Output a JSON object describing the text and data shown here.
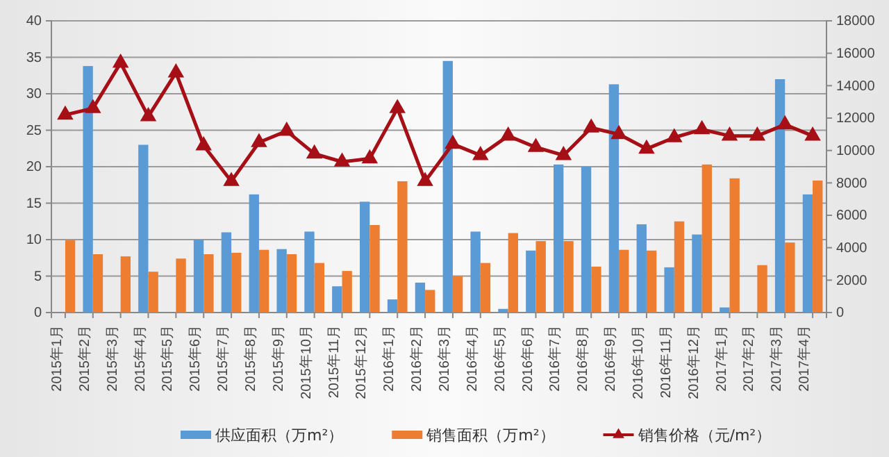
{
  "chart_data": {
    "type": "bar",
    "categories": [
      "2015年1月",
      "2015年2月",
      "2015年3月",
      "2015年4月",
      "2015年5月",
      "2015年6月",
      "2015年7月",
      "2015年8月",
      "2015年9月",
      "2015年10月",
      "2015年11月",
      "2015年12月",
      "2016年1月",
      "2016年2月",
      "2016年3月",
      "2016年4月",
      "2016年5月",
      "2016年6月",
      "2016年7月",
      "2016年8月",
      "2016年9月",
      "2016年10月",
      "2016年11月",
      "2016年12月",
      "2017年1月",
      "2017年2月",
      "2017年3月",
      "2017年4月"
    ],
    "series": [
      {
        "name": "供应面积（万m²）",
        "color": "#5b9bd5",
        "values": [
          0,
          33.8,
          0,
          23,
          0,
          10,
          11,
          16.2,
          8.7,
          11.1,
          3.6,
          15.2,
          1.8,
          4.1,
          34.5,
          11.1,
          0.5,
          8.5,
          20.3,
          20,
          31.3,
          12.1,
          6.2,
          10.7,
          0.7,
          0,
          32,
          16.2
        ]
      },
      {
        "name": "销售面积（万m²）",
        "color": "#ed7d31",
        "values": [
          9.9,
          8.0,
          7.7,
          5.6,
          7.4,
          8.0,
          8.2,
          8.6,
          8.0,
          6.8,
          5.7,
          12.0,
          18.0,
          3.1,
          5.0,
          6.8,
          10.9,
          9.8,
          9.8,
          6.3,
          8.6,
          8.5,
          12.5,
          20.3,
          18.4,
          6.5,
          9.6,
          18.1
        ]
      },
      {
        "name": "销售价格（元/m²）",
        "type": "line",
        "axis": "y2",
        "color": "#a50f15",
        "values": [
          12200,
          12600,
          15400,
          12100,
          14800,
          10300,
          8100,
          10500,
          11200,
          9800,
          9300,
          9500,
          12600,
          8100,
          10400,
          9700,
          10900,
          10200,
          9700,
          11400,
          11000,
          10100,
          10800,
          11300,
          10900,
          10900,
          11600,
          10900
        ]
      }
    ],
    "ylim": [
      0,
      40
    ],
    "yticks": [
      0,
      5,
      10,
      15,
      20,
      25,
      30,
      35,
      40
    ],
    "y2lim": [
      0,
      18000
    ],
    "y2ticks": [
      0,
      2000,
      4000,
      6000,
      8000,
      10000,
      12000,
      14000,
      16000,
      18000
    ],
    "grid": "y",
    "legend": "bottom",
    "marker": "triangle",
    "line_style": "solid"
  }
}
